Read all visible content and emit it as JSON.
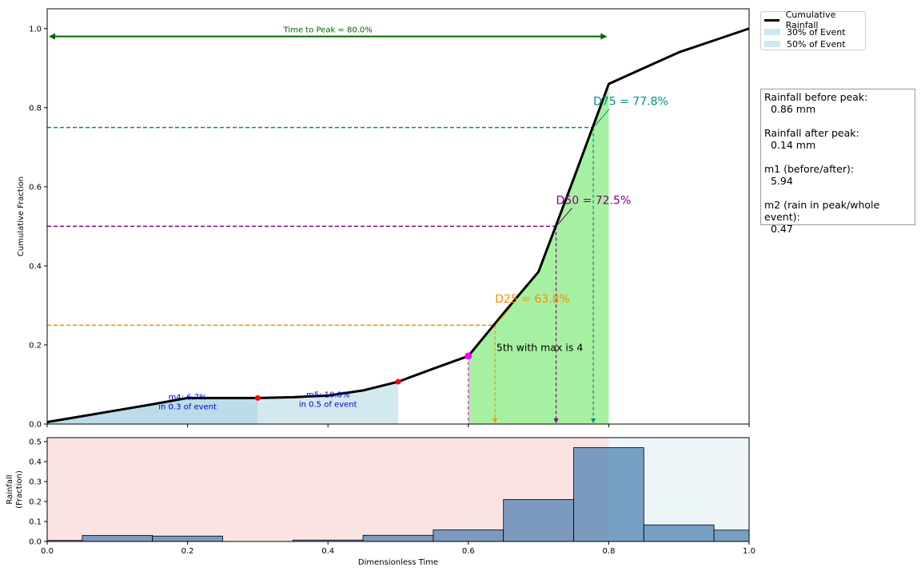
{
  "chart_data": [
    {
      "type": "line",
      "ylabel": "Cumulative Fraction",
      "xlim": [
        0,
        1
      ],
      "ylim": [
        0,
        1.05
      ],
      "yticks": [
        "0.0",
        "0.2",
        "0.4",
        "0.6",
        "0.8",
        "1.0"
      ],
      "series": [
        {
          "name": "Cumulative Rainfall",
          "x": [
            0.0,
            0.05,
            0.1,
            0.15,
            0.2,
            0.25,
            0.3,
            0.35,
            0.4,
            0.45,
            0.5,
            0.55,
            0.6,
            0.65,
            0.7,
            0.75,
            0.8,
            0.85,
            0.9,
            0.95,
            1.0
          ],
          "y": [
            0.005,
            0.02,
            0.035,
            0.05,
            0.066,
            0.066,
            0.066,
            0.068,
            0.072,
            0.085,
            0.107,
            0.14,
            0.172,
            0.28,
            0.385,
            0.62,
            0.86,
            0.9,
            0.94,
            0.97,
            1.0
          ]
        }
      ],
      "legend": {
        "position": "outside-top-right",
        "entries": [
          "Cumulative Rainfall",
          "30% of Event",
          "50% of Event"
        ]
      },
      "shaded_regions": [
        {
          "label": "30% of Event",
          "x_start": 0.0,
          "x_end": 0.3,
          "color": "#bcdcea"
        },
        {
          "label": "50% of Event",
          "x_start": 0.3,
          "x_end": 0.5,
          "color": "#d3e9f0"
        },
        {
          "label": "peak",
          "x_start": 0.6,
          "x_end": 0.8,
          "color": "#a6f0a1"
        }
      ],
      "time_to_peak": {
        "label": "Time to Peak = 80.0%",
        "x_start": 0.0,
        "x_end": 0.8,
        "y": 0.98
      },
      "percentiles": [
        {
          "label": "D25 = 63.8%",
          "level": 0.25,
          "x": 0.638,
          "color": "#ff8c00"
        },
        {
          "label": "D50 = 72.5%",
          "level": 0.5,
          "x": 0.725,
          "color": "#800080"
        },
        {
          "label": "D75 = 77.8%",
          "level": 0.75,
          "x": 0.778,
          "color": "#008b8b"
        }
      ],
      "annotations": [
        {
          "line1": "m4: 6.7%",
          "line2": "in 0.3 of event",
          "x": 0.2,
          "y": 0.066
        },
        {
          "line1": "m5: 10.8%",
          "line2": "in 0.5 of event",
          "x": 0.4,
          "y": 0.072
        },
        {
          "text": "5th with max is 4"
        }
      ],
      "markers": [
        {
          "x": 0.3,
          "y": 0.066,
          "color": "#ff0000"
        },
        {
          "x": 0.5,
          "y": 0.107,
          "color": "#ff0000"
        },
        {
          "x": 0.6,
          "y": 0.172,
          "color": "#ff00ff"
        }
      ]
    },
    {
      "type": "bar",
      "ylabel": "Rainfall\n(Fraction)",
      "xlabel": "Dimensionless Time",
      "xlim": [
        0,
        1
      ],
      "ylim": [
        0,
        0.52
      ],
      "xticks": [
        "0.0",
        "0.2",
        "0.4",
        "0.6",
        "0.8",
        "1.0"
      ],
      "yticks": [
        "0.0",
        "0.1",
        "0.2",
        "0.3",
        "0.4",
        "0.5"
      ],
      "bin_width": 0.1,
      "bins_left": [
        -0.05,
        0.05,
        0.15,
        0.25,
        0.35,
        0.45,
        0.55,
        0.65,
        0.75,
        0.85,
        0.95
      ],
      "values": [
        0.005,
        0.03,
        0.027,
        0.0,
        0.007,
        0.031,
        0.058,
        0.21,
        0.47,
        0.083,
        0.057
      ],
      "background_regions": [
        {
          "label": "before peak",
          "x_start": 0.0,
          "x_end": 0.8,
          "color": "#fae3e1"
        },
        {
          "label": "after peak",
          "x_start": 0.8,
          "x_end": 1.0,
          "color": "#eef5f8"
        }
      ]
    }
  ],
  "stats": {
    "before_label": "Rainfall before peak:",
    "before_value": "0.86 mm",
    "after_label": "Rainfall after peak:",
    "after_value": "0.14 mm",
    "m1_label": "m1 (before/after):",
    "m1_value": "5.94",
    "m2_label": "m2 (rain in peak/whole event):",
    "m2_value": "0.47"
  }
}
